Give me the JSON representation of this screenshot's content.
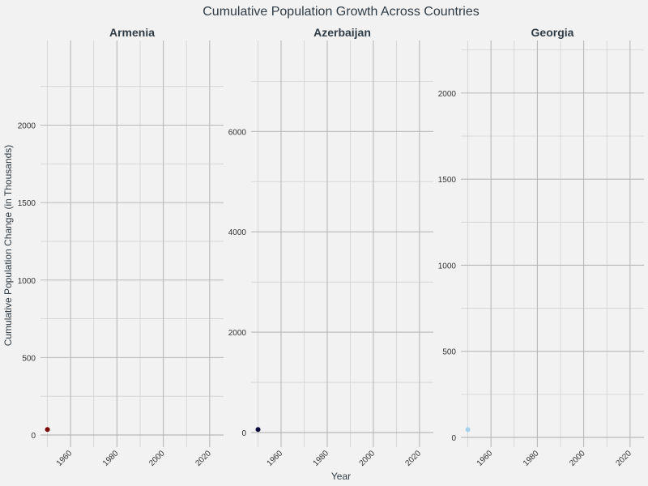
{
  "chart_data": {
    "type": "scatter",
    "title": "Cumulative Population Growth Across Countries",
    "xlabel": "Year",
    "ylabel": "Cumulative Population Change (in Thousands)",
    "grid": true,
    "legend": "none",
    "x_ticks": [
      1960,
      1980,
      2000,
      2020
    ],
    "facets": [
      {
        "name": "Armenia",
        "xlim": [
          1947,
          2026
        ],
        "ylim": [
          0,
          2400
        ],
        "y_ticks": [
          0,
          500,
          1000,
          1500,
          2000
        ],
        "point_color": "#7a0a0a",
        "points": [
          {
            "x": 1950,
            "y": 35
          }
        ]
      },
      {
        "name": "Azerbaijan",
        "xlim": [
          1947,
          2026
        ],
        "ylim": [
          0,
          7200
        ],
        "y_ticks": [
          0,
          2000,
          4000,
          6000
        ],
        "point_color": "#0a0a3c",
        "points": [
          {
            "x": 1950,
            "y": 60
          }
        ]
      },
      {
        "name": "Georgia",
        "xlim": [
          1947,
          2026
        ],
        "ylim": [
          0,
          2150
        ],
        "y_ticks": [
          0,
          500,
          1000,
          1500,
          2000
        ],
        "point_color": "#a6d1ea",
        "points": [
          {
            "x": 1950,
            "y": 45
          }
        ]
      }
    ]
  }
}
